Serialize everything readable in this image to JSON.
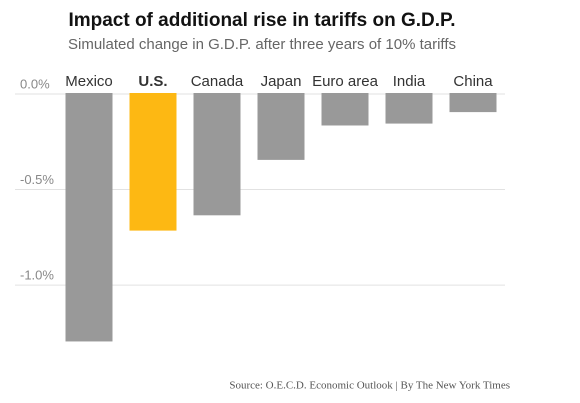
{
  "chart_data": {
    "type": "bar",
    "title": "Impact of additional rise in tariffs on G.D.P.",
    "subtitle": "Simulated change in G.D.P. after three years of 10% tariffs",
    "source": "Source: O.E.C.D. Economic Outlook | By The New York Times",
    "categories": [
      "Mexico",
      "U.S.",
      "Canada",
      "Japan",
      "Euro area",
      "India",
      "China"
    ],
    "values": [
      -1.3,
      -0.72,
      -0.64,
      -0.35,
      -0.17,
      -0.16,
      -0.1
    ],
    "colors": [
      "#999999",
      "#fdb813",
      "#999999",
      "#999999",
      "#999999",
      "#999999",
      "#999999"
    ],
    "ylim": [
      -1.35,
      0
    ],
    "yticks": [
      {
        "value": 0,
        "label": "0.0%"
      },
      {
        "value": -0.5,
        "label": "-0.5%"
      },
      {
        "value": -1,
        "label": "-1.0%"
      }
    ],
    "grid": true
  }
}
